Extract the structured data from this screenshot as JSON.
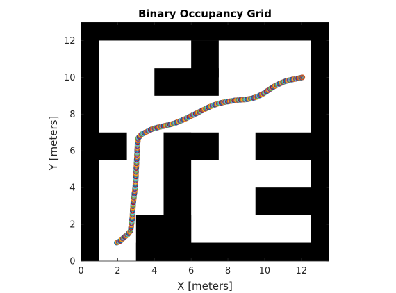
{
  "chart_data": {
    "type": "scatter",
    "title": "Binary Occupancy Grid",
    "xlabel": "X [meters]",
    "ylabel": "Y [meters]",
    "xlim": [
      0,
      13.5
    ],
    "ylim": [
      0,
      13
    ],
    "x_ticks": [
      0,
      2,
      4,
      6,
      8,
      10,
      12
    ],
    "y_ticks": [
      0,
      2,
      4,
      6,
      8,
      10,
      12
    ],
    "x_tick_labels": [
      "0",
      "2",
      "4",
      "6",
      "8",
      "10",
      "12"
    ],
    "y_tick_labels": [
      "0",
      "2",
      "4",
      "6",
      "8",
      "10",
      "12"
    ],
    "grid": false,
    "legend": "none",
    "colors": {
      "occupied": "#000000",
      "free": "#ffffff",
      "axis": "#262626",
      "marker_palette": [
        "#0072bd",
        "#d95319",
        "#edb120",
        "#7e2f8e",
        "#77ac30",
        "#4dbeee",
        "#a2142f"
      ]
    },
    "occupied_cells": [
      {
        "x0": 0,
        "x1": 13.5,
        "y0": 12,
        "y1": 13
      },
      {
        "x0": 0,
        "x1": 1,
        "y0": 0,
        "y1": 13
      },
      {
        "x0": 12.5,
        "x1": 13.5,
        "y0": 0,
        "y1": 13
      },
      {
        "x0": 6,
        "x1": 7.5,
        "y0": 10,
        "y1": 12
      },
      {
        "x0": 4,
        "x1": 7.5,
        "y0": 9,
        "y1": 10.5
      },
      {
        "x0": 1,
        "x1": 2.5,
        "y0": 5.5,
        "y1": 7
      },
      {
        "x0": 4.5,
        "x1": 7.5,
        "y0": 5.5,
        "y1": 7
      },
      {
        "x0": 4.5,
        "x1": 6,
        "y0": 1,
        "y1": 7
      },
      {
        "x0": 9.5,
        "x1": 12.5,
        "y0": 5.5,
        "y1": 7
      },
      {
        "x0": 9.5,
        "x1": 12.5,
        "y0": 2.5,
        "y1": 4
      },
      {
        "x0": 3,
        "x1": 6,
        "y0": 0,
        "y1": 2.5
      },
      {
        "x0": 3,
        "x1": 13.5,
        "y0": 0,
        "y1": 1
      }
    ],
    "path": [
      [
        1.95,
        1.0
      ],
      [
        2.15,
        1.1
      ],
      [
        2.35,
        1.3
      ],
      [
        2.55,
        1.45
      ],
      [
        2.7,
        1.65
      ],
      [
        2.75,
        2.0
      ],
      [
        2.8,
        2.4
      ],
      [
        2.82,
        2.8
      ],
      [
        2.85,
        3.2
      ],
      [
        2.9,
        3.6
      ],
      [
        2.95,
        4.0
      ],
      [
        2.98,
        4.4
      ],
      [
        3.0,
        4.8
      ],
      [
        3.02,
        5.2
      ],
      [
        3.04,
        5.6
      ],
      [
        3.06,
        6.0
      ],
      [
        3.08,
        6.4
      ],
      [
        3.12,
        6.7
      ],
      [
        3.3,
        6.9
      ],
      [
        3.6,
        7.05
      ],
      [
        3.9,
        7.2
      ],
      [
        4.2,
        7.28
      ],
      [
        4.5,
        7.35
      ],
      [
        4.8,
        7.42
      ],
      [
        5.1,
        7.5
      ],
      [
        5.4,
        7.62
      ],
      [
        5.7,
        7.75
      ],
      [
        6.0,
        7.9
      ],
      [
        6.3,
        8.05
      ],
      [
        6.6,
        8.2
      ],
      [
        6.9,
        8.35
      ],
      [
        7.2,
        8.48
      ],
      [
        7.5,
        8.58
      ],
      [
        7.8,
        8.65
      ],
      [
        8.1,
        8.7
      ],
      [
        8.4,
        8.75
      ],
      [
        8.7,
        8.78
      ],
      [
        9.0,
        8.8
      ],
      [
        9.3,
        8.85
      ],
      [
        9.6,
        8.95
      ],
      [
        9.9,
        9.1
      ],
      [
        10.2,
        9.3
      ],
      [
        10.5,
        9.5
      ],
      [
        10.8,
        9.65
      ],
      [
        11.1,
        9.78
      ],
      [
        11.4,
        9.86
      ],
      [
        11.7,
        9.92
      ],
      [
        11.95,
        9.97
      ],
      [
        12.05,
        10.0
      ]
    ]
  }
}
